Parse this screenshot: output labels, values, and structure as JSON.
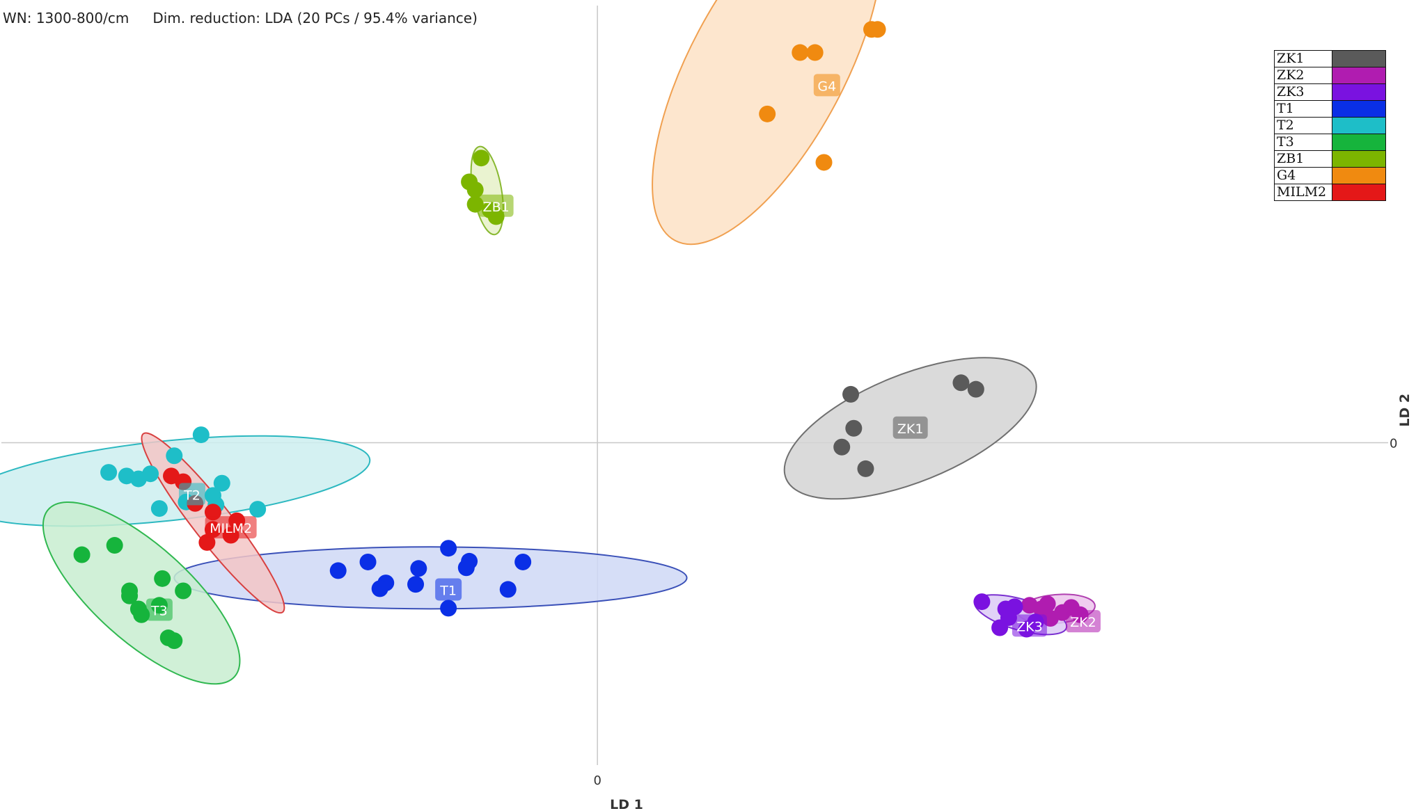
{
  "header": {
    "wn": "WN: 1300-800/cm",
    "dim_reduction": "Dim. reduction: LDA (20 PCs / 95.4% variance)"
  },
  "chart_data": {
    "type": "scatter",
    "title": "",
    "xlabel": "LD 1",
    "ylabel": "LD 2",
    "xlim": [
      -100,
      135
    ],
    "ylim": [
      -47.5,
      60.5
    ],
    "x_ticks": [
      {
        "value": 0,
        "label": "0"
      }
    ],
    "y_ticks": [
      {
        "value": 0,
        "label": "0"
      }
    ],
    "legend": {
      "position": "top-right"
    },
    "series": [
      {
        "name": "ZK1",
        "color": "#5a5a5a",
        "fill": "#d3d3d3",
        "stroke": "#707070",
        "ellipse": {
          "cx": 52.5,
          "cy": 2.0,
          "rx": 22.5,
          "ry": 9.0,
          "angle": -22
        },
        "label_pos": [
          52.5,
          2.0
        ],
        "points": [
          [
            42.5,
            6.7
          ],
          [
            43.0,
            2.0
          ],
          [
            41.0,
            -0.6
          ],
          [
            45.0,
            -3.6
          ],
          [
            61.0,
            8.3
          ],
          [
            63.5,
            7.4
          ]
        ]
      },
      {
        "name": "ZK2",
        "color": "#b01cb0",
        "fill": "#ecc4ec",
        "stroke": "#b040b0",
        "ellipse": {
          "cx": 77.0,
          "cy": -23.0,
          "rx": 6.5,
          "ry": 2.4,
          "angle": -5
        },
        "label_pos": [
          81.5,
          -24.8
        ],
        "points": [
          [
            72.5,
            -22.5
          ],
          [
            75.5,
            -22.3
          ],
          [
            78.0,
            -23.5
          ],
          [
            79.5,
            -22.8
          ],
          [
            76.0,
            -24.3
          ],
          [
            81.0,
            -23.8
          ],
          [
            74.5,
            -23.0
          ]
        ]
      },
      {
        "name": "ZK3",
        "color": "#7a12e0",
        "fill": "#dccaf6",
        "stroke": "#7a30d0",
        "ellipse": {
          "cx": 71.0,
          "cy": -23.8,
          "rx": 8.0,
          "ry": 2.6,
          "angle": 16
        },
        "label_pos": [
          72.5,
          -25.4
        ],
        "points": [
          [
            64.5,
            -22.0
          ],
          [
            68.5,
            -23.0
          ],
          [
            70.0,
            -22.7
          ],
          [
            67.5,
            -25.6
          ],
          [
            72.0,
            -25.8
          ],
          [
            73.5,
            -24.8
          ],
          [
            69.0,
            -24.2
          ]
        ]
      },
      {
        "name": "T1",
        "color": "#0a2fe6",
        "fill": "#cfd8f6",
        "stroke": "#3a50b8",
        "ellipse": {
          "cx": -28.0,
          "cy": -18.7,
          "rx": 43.0,
          "ry": 5.2,
          "angle": 0
        },
        "label_pos": [
          -25.0,
          -20.4
        ],
        "points": [
          [
            -43.5,
            -17.7
          ],
          [
            -38.5,
            -16.5
          ],
          [
            -35.5,
            -19.4
          ],
          [
            -36.5,
            -20.2
          ],
          [
            -30.0,
            -17.4
          ],
          [
            -30.5,
            -19.6
          ],
          [
            -25.0,
            -14.6
          ],
          [
            -25.0,
            -22.9
          ],
          [
            -21.5,
            -16.4
          ],
          [
            -22.0,
            -17.3
          ],
          [
            -15.0,
            -20.3
          ],
          [
            -12.5,
            -16.5
          ]
        ]
      },
      {
        "name": "T2",
        "color": "#1ebec8",
        "fill": "#cdeef0",
        "stroke": "#2cb8c0",
        "ellipse": {
          "cx": -72.5,
          "cy": -5.3,
          "rx": 34.5,
          "ry": 6.7,
          "angle": -6
        },
        "label_pos": [
          -68.0,
          -7.2
        ],
        "points": [
          [
            -66.5,
            1.1
          ],
          [
            -82.0,
            -4.1
          ],
          [
            -79.0,
            -4.6
          ],
          [
            -77.0,
            -5.0
          ],
          [
            -75.0,
            -4.3
          ],
          [
            -71.0,
            -1.8
          ],
          [
            -73.5,
            -9.1
          ],
          [
            -69.0,
            -8.2
          ],
          [
            -63.0,
            -5.6
          ],
          [
            -64.5,
            -7.3
          ],
          [
            -64.0,
            -8.6
          ],
          [
            -57.0,
            -9.2
          ]
        ]
      },
      {
        "name": "T3",
        "color": "#16b43c",
        "fill": "#c8edd0",
        "stroke": "#30b850",
        "ellipse": {
          "cx": -76.5,
          "cy": -20.8,
          "rx": 21.0,
          "ry": 8.0,
          "angle": 42
        },
        "label_pos": [
          -73.5,
          -23.2
        ],
        "points": [
          [
            -86.5,
            -15.5
          ],
          [
            -81.0,
            -14.2
          ],
          [
            -78.5,
            -20.5
          ],
          [
            -78.5,
            -21.2
          ],
          [
            -73.0,
            -18.8
          ],
          [
            -73.5,
            -22.5
          ],
          [
            -69.5,
            -20.5
          ],
          [
            -77.0,
            -23.0
          ],
          [
            -76.5,
            -23.8
          ],
          [
            -72.0,
            -27.0
          ],
          [
            -71.0,
            -27.4
          ]
        ]
      },
      {
        "name": "ZB1",
        "color": "#7cb500",
        "fill": "#e6f1c8",
        "stroke": "#88b830",
        "ellipse": {
          "cx": -18.5,
          "cy": 34.9,
          "rx": 7.5,
          "ry": 2.4,
          "angle": 80
        },
        "label_pos": [
          -17.0,
          32.7
        ],
        "points": [
          [
            -19.5,
            39.4
          ],
          [
            -21.5,
            36.1
          ],
          [
            -20.5,
            35.0
          ],
          [
            -20.5,
            33.0
          ],
          [
            -18.0,
            32.2
          ],
          [
            -17.0,
            31.3
          ]
        ]
      },
      {
        "name": "G4",
        "color": "#f08a10",
        "fill": "#fde2c6",
        "stroke": "#f0a050",
        "ellipse": {
          "cx": 28.5,
          "cy": 52.0,
          "rx": 33.0,
          "ry": 13.0,
          "angle": -62
        },
        "label_pos": [
          38.5,
          49.4
        ],
        "points": [
          [
            34.0,
            54.0
          ],
          [
            36.5,
            54.0
          ],
          [
            46.0,
            57.2
          ],
          [
            47.0,
            57.2
          ],
          [
            28.5,
            45.5
          ],
          [
            38.0,
            38.8
          ]
        ]
      },
      {
        "name": "MILM2",
        "color": "#e41818",
        "fill": "#f3c6c6",
        "stroke": "#d84040",
        "ellipse": {
          "cx": -64.5,
          "cy": -11.1,
          "rx": 19.0,
          "ry": 3.2,
          "angle": 52
        },
        "label_pos": [
          -61.5,
          -11.8
        ],
        "points": [
          [
            -71.5,
            -4.6
          ],
          [
            -69.5,
            -5.4
          ],
          [
            -67.5,
            -8.4
          ],
          [
            -64.5,
            -9.6
          ],
          [
            -60.5,
            -10.8
          ],
          [
            -64.5,
            -12.0
          ],
          [
            -65.5,
            -13.8
          ],
          [
            -61.5,
            -12.8
          ]
        ]
      }
    ]
  }
}
